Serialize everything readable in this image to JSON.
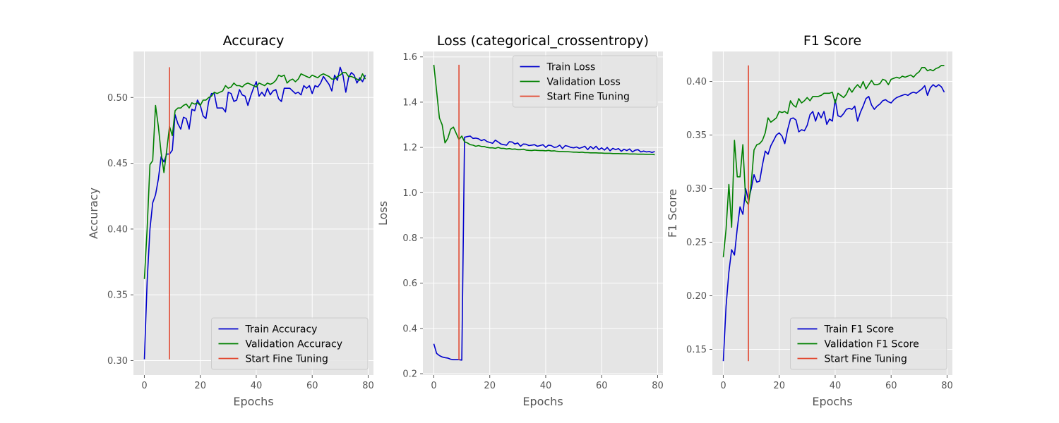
{
  "chart_data": [
    {
      "type": "line",
      "title": "Accuracy",
      "xlabel": "Epochs",
      "ylabel": "Accuracy",
      "xlim": [
        -3.9,
        81.9
      ],
      "ylim": [
        0.289,
        0.535
      ],
      "xticks": [
        0,
        20,
        40,
        60,
        80
      ],
      "yticks": [
        0.3,
        0.35,
        0.4,
        0.45,
        0.5
      ],
      "ytick_labels": [
        "0.30",
        "0.35",
        "0.40",
        "0.45",
        "0.50"
      ],
      "grid": true,
      "legend_position": "bottom-right",
      "series": [
        {
          "name": "Train Accuracy",
          "color": "#0000cc",
          "values": [
            0.301,
            0.36,
            0.4,
            0.42,
            0.426,
            0.438,
            0.455,
            0.451,
            0.457,
            0.457,
            0.46,
            0.487,
            0.48,
            0.476,
            0.485,
            0.484,
            0.476,
            0.491,
            0.49,
            0.498,
            0.494,
            0.486,
            0.484,
            0.497,
            0.503,
            0.503,
            0.492,
            0.492,
            0.492,
            0.489,
            0.504,
            0.503,
            0.497,
            0.498,
            0.506,
            0.502,
            0.501,
            0.494,
            0.501,
            0.507,
            0.512,
            0.501,
            0.504,
            0.501,
            0.507,
            0.502,
            0.505,
            0.506,
            0.499,
            0.497,
            0.507,
            0.507,
            0.507,
            0.505,
            0.503,
            0.504,
            0.502,
            0.509,
            0.507,
            0.509,
            0.503,
            0.509,
            0.508,
            0.511,
            0.516,
            0.513,
            0.51,
            0.505,
            0.517,
            0.513,
            0.523,
            0.517,
            0.504,
            0.515,
            0.519,
            0.517,
            0.511,
            0.515,
            0.512,
            0.517
          ]
        },
        {
          "name": "Validation Accuracy",
          "color": "#008000",
          "values": [
            0.362,
            0.4,
            0.449,
            0.452,
            0.494,
            0.478,
            0.458,
            0.443,
            0.46,
            0.478,
            0.471,
            0.49,
            0.492,
            0.492,
            0.494,
            0.495,
            0.492,
            0.496,
            0.495,
            0.496,
            0.494,
            0.498,
            0.498,
            0.5,
            0.501,
            0.504,
            0.503,
            0.504,
            0.505,
            0.509,
            0.507,
            0.508,
            0.511,
            0.509,
            0.509,
            0.508,
            0.51,
            0.511,
            0.51,
            0.509,
            0.508,
            0.511,
            0.51,
            0.509,
            0.511,
            0.51,
            0.511,
            0.513,
            0.517,
            0.516,
            0.517,
            0.511,
            0.513,
            0.514,
            0.512,
            0.514,
            0.518,
            0.517,
            0.516,
            0.515,
            0.517,
            0.516,
            0.515,
            0.517,
            0.518,
            0.517,
            0.516,
            0.514,
            0.514,
            0.516,
            0.517,
            0.519,
            0.519,
            0.516,
            0.516,
            0.515,
            0.514,
            0.513,
            0.518,
            0.514
          ]
        },
        {
          "name": "Start Fine Tuning",
          "color": "#e24a33",
          "x": [
            9,
            9
          ],
          "values": [
            0.301,
            0.523
          ]
        }
      ]
    },
    {
      "type": "line",
      "title": "Loss (categorical_crossentropy)",
      "xlabel": "Epochs",
      "ylabel": "Loss",
      "xlim": [
        -3.9,
        81.9
      ],
      "ylim": [
        0.194,
        1.624
      ],
      "xticks": [
        0,
        20,
        40,
        60,
        80
      ],
      "yticks": [
        0.2,
        0.4,
        0.6,
        0.8,
        1.0,
        1.2,
        1.4,
        1.6
      ],
      "ytick_labels": [
        "0.2",
        "0.4",
        "0.6",
        "0.8",
        "1.0",
        "1.2",
        "1.4",
        "1.6"
      ],
      "grid": true,
      "legend_position": "top-right",
      "series": [
        {
          "name": "Train Loss",
          "color": "#0000cc",
          "values": [
            0.332,
            0.29,
            0.28,
            0.274,
            0.271,
            0.269,
            0.264,
            0.262,
            0.262,
            0.262,
            0.26,
            1.245,
            1.248,
            1.25,
            1.24,
            1.241,
            1.238,
            1.23,
            1.235,
            1.226,
            1.222,
            1.218,
            1.232,
            1.224,
            1.215,
            1.212,
            1.21,
            1.225,
            1.224,
            1.215,
            1.22,
            1.205,
            1.215,
            1.214,
            1.208,
            1.21,
            1.212,
            1.205,
            1.208,
            1.212,
            1.2,
            1.21,
            1.208,
            1.2,
            1.202,
            1.21,
            1.195,
            1.208,
            1.205,
            1.2,
            1.198,
            1.202,
            1.196,
            1.2,
            1.205,
            1.19,
            1.204,
            1.194,
            1.205,
            1.19,
            1.198,
            1.188,
            1.2,
            1.185,
            1.196,
            1.19,
            1.195,
            1.183,
            1.192,
            1.186,
            1.193,
            1.18,
            1.188,
            1.19,
            1.18,
            1.184,
            1.18,
            1.182,
            1.178,
            1.182
          ]
        },
        {
          "name": "Validation Loss",
          "color": "#008000",
          "values": [
            1.565,
            1.45,
            1.33,
            1.3,
            1.22,
            1.24,
            1.28,
            1.29,
            1.262,
            1.235,
            1.25,
            1.225,
            1.22,
            1.212,
            1.21,
            1.205,
            1.208,
            1.204,
            1.204,
            1.2,
            1.198,
            1.198,
            1.196,
            1.2,
            1.196,
            1.196,
            1.193,
            1.195,
            1.192,
            1.193,
            1.19,
            1.19,
            1.192,
            1.188,
            1.187,
            1.186,
            1.188,
            1.187,
            1.186,
            1.186,
            1.185,
            1.187,
            1.184,
            1.185,
            1.183,
            1.182,
            1.182,
            1.181,
            1.181,
            1.18,
            1.179,
            1.179,
            1.178,
            1.179,
            1.177,
            1.177,
            1.176,
            1.176,
            1.176,
            1.175,
            1.175,
            1.174,
            1.174,
            1.174,
            1.173,
            1.173,
            1.173,
            1.172,
            1.172,
            1.172,
            1.171,
            1.171,
            1.171,
            1.17,
            1.17,
            1.17,
            1.169,
            1.169,
            1.169,
            1.168
          ]
        },
        {
          "name": "Start Fine Tuning",
          "color": "#e24a33",
          "x": [
            9,
            9
          ],
          "values": [
            0.26,
            1.565
          ]
        }
      ]
    },
    {
      "type": "line",
      "title": "F1 Score",
      "xlabel": "Epochs",
      "ylabel": "F1 Score",
      "xlim": [
        -3.9,
        81.9
      ],
      "ylim": [
        0.126,
        0.428
      ],
      "xticks": [
        0,
        20,
        40,
        60,
        80
      ],
      "yticks": [
        0.15,
        0.2,
        0.25,
        0.3,
        0.35,
        0.4
      ],
      "ytick_labels": [
        "0.15",
        "0.20",
        "0.25",
        "0.30",
        "0.35",
        "0.40"
      ],
      "grid": true,
      "legend_position": "bottom-right",
      "series": [
        {
          "name": "Train F1 Score",
          "color": "#0000cc",
          "values": [
            0.139,
            0.19,
            0.222,
            0.243,
            0.238,
            0.263,
            0.283,
            0.276,
            0.3,
            0.289,
            0.3,
            0.313,
            0.306,
            0.307,
            0.322,
            0.335,
            0.332,
            0.34,
            0.345,
            0.35,
            0.352,
            0.349,
            0.342,
            0.355,
            0.365,
            0.366,
            0.364,
            0.353,
            0.355,
            0.354,
            0.359,
            0.369,
            0.372,
            0.363,
            0.371,
            0.366,
            0.372,
            0.36,
            0.365,
            0.363,
            0.383,
            0.368,
            0.367,
            0.37,
            0.374,
            0.375,
            0.374,
            0.377,
            0.363,
            0.371,
            0.377,
            0.384,
            0.386,
            0.378,
            0.374,
            0.377,
            0.379,
            0.382,
            0.383,
            0.381,
            0.38,
            0.383,
            0.385,
            0.386,
            0.387,
            0.388,
            0.387,
            0.389,
            0.39,
            0.389,
            0.391,
            0.393,
            0.396,
            0.387,
            0.394,
            0.397,
            0.395,
            0.397,
            0.395,
            0.39
          ]
        },
        {
          "name": "Validation F1 Score",
          "color": "#008000",
          "values": [
            0.236,
            0.262,
            0.304,
            0.264,
            0.345,
            0.311,
            0.311,
            0.341,
            0.289,
            0.285,
            0.305,
            0.336,
            0.341,
            0.342,
            0.345,
            0.352,
            0.366,
            0.362,
            0.364,
            0.366,
            0.372,
            0.371,
            0.372,
            0.37,
            0.382,
            0.378,
            0.376,
            0.384,
            0.38,
            0.382,
            0.385,
            0.382,
            0.386,
            0.386,
            0.386,
            0.387,
            0.389,
            0.389,
            0.389,
            0.39,
            0.38,
            0.389,
            0.387,
            0.385,
            0.388,
            0.394,
            0.39,
            0.394,
            0.397,
            0.394,
            0.4,
            0.393,
            0.397,
            0.401,
            0.397,
            0.397,
            0.398,
            0.402,
            0.401,
            0.397,
            0.402,
            0.403,
            0.404,
            0.403,
            0.405,
            0.404,
            0.405,
            0.406,
            0.404,
            0.407,
            0.409,
            0.413,
            0.413,
            0.41,
            0.411,
            0.41,
            0.412,
            0.413,
            0.415,
            0.415
          ]
        },
        {
          "name": "Start Fine Tuning",
          "color": "#e24a33",
          "x": [
            9,
            9
          ],
          "values": [
            0.139,
            0.415
          ]
        }
      ]
    }
  ]
}
